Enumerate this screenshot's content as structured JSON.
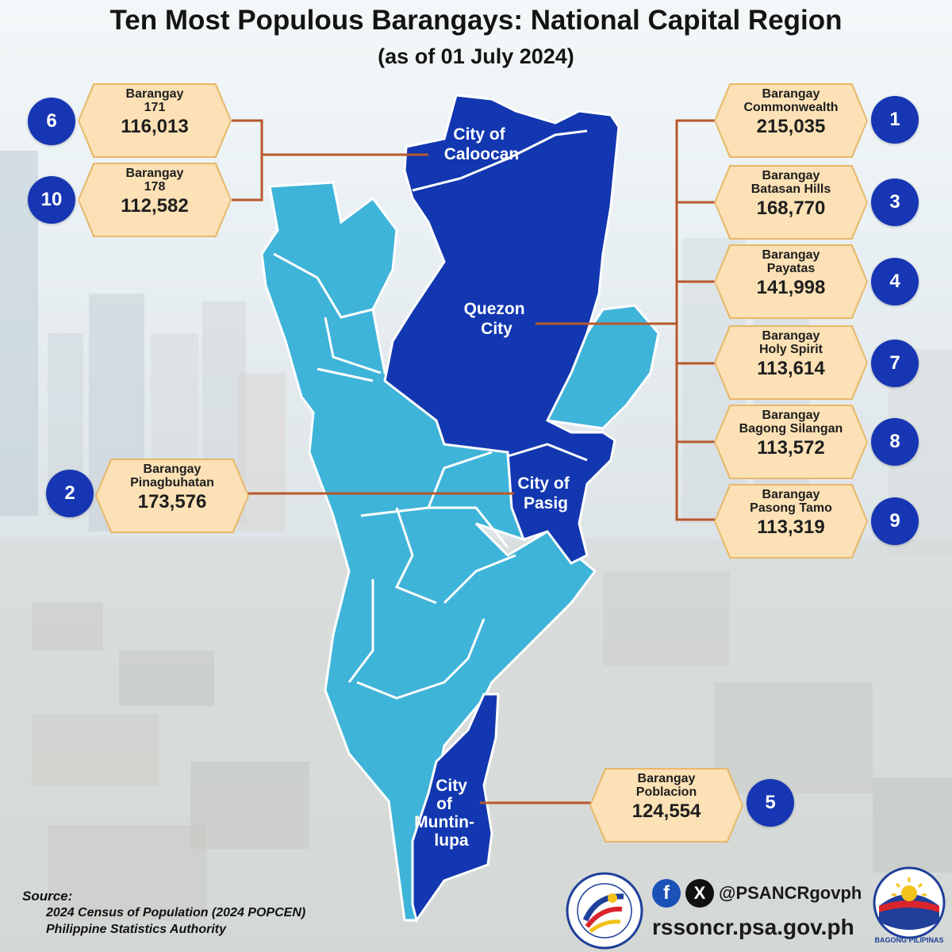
{
  "title": "Ten Most Populous Barangays: National Capital Region",
  "subtitle": "(as of 01 July 2024)",
  "colors": {
    "highlight_city": "#1237b0",
    "other_city": "#3fb4d9",
    "badge": "#fbe1b5",
    "rank_circle": "#1636b4",
    "connector": "#b8582b"
  },
  "cities": [
    {
      "name_lines": [
        "City of",
        "Caloocan"
      ]
    },
    {
      "name_lines": [
        "Quezon",
        "City"
      ]
    },
    {
      "name_lines": [
        "City of",
        "Pasig"
      ]
    },
    {
      "name_lines": [
        "City",
        "of",
        "Muntin-",
        "lupa"
      ]
    }
  ],
  "barangays": [
    {
      "rank": "6",
      "name_lines": [
        "Barangay",
        "171"
      ],
      "population": "116,013",
      "city": "City of Caloocan"
    },
    {
      "rank": "10",
      "name_lines": [
        "Barangay",
        "178"
      ],
      "population": "112,582",
      "city": "City of Caloocan"
    },
    {
      "rank": "1",
      "name_lines": [
        "Barangay",
        "Commonwealth"
      ],
      "population": "215,035",
      "city": "Quezon City"
    },
    {
      "rank": "3",
      "name_lines": [
        "Barangay",
        "Batasan Hills"
      ],
      "population": "168,770",
      "city": "Quezon City"
    },
    {
      "rank": "4",
      "name_lines": [
        "Barangay",
        "Payatas"
      ],
      "population": "141,998",
      "city": "Quezon City"
    },
    {
      "rank": "7",
      "name_lines": [
        "Barangay",
        "Holy Spirit"
      ],
      "population": "113,614",
      "city": "Quezon City"
    },
    {
      "rank": "8",
      "name_lines": [
        "Barangay",
        "Bagong Silangan"
      ],
      "population": "113,572",
      "city": "Quezon City"
    },
    {
      "rank": "9",
      "name_lines": [
        "Barangay",
        "Pasong Tamo"
      ],
      "population": "113,319",
      "city": "Quezon City"
    },
    {
      "rank": "2",
      "name_lines": [
        "Barangay",
        "Pinagbuhatan"
      ],
      "population": "173,576",
      "city": "City of Pasig"
    },
    {
      "rank": "5",
      "name_lines": [
        "Barangay",
        "Poblacion"
      ],
      "population": "124,554",
      "city": "City of Muntinlupa"
    }
  ],
  "source": {
    "label": "Source:",
    "line1": "2024 Census of Population (2024 POPCEN)",
    "line2": "Philippine Statistics Authority"
  },
  "social": {
    "facebook_icon": "f",
    "x_icon": "X",
    "handle": "@PSANCRgovph",
    "website": "rssoncr.psa.gov.ph"
  },
  "logos": {
    "psa_text": "PHILIPPINE STATISTICS AUTHORITY",
    "bagong_pilipinas_text": "BAGONG PILIPINAS"
  }
}
